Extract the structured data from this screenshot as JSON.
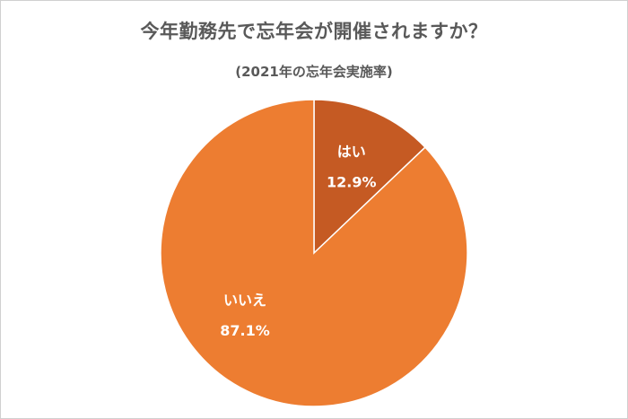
{
  "chart_data": {
    "type": "pie",
    "title": "今年勤務先で忘年会が開催されますか？",
    "subtitle": "(2021年の忘年会実施率)",
    "slices": [
      {
        "label": "はい",
        "value": 12.9,
        "value_label": "12.9%",
        "color": "#C55A23"
      },
      {
        "label": "いいえ",
        "value": 87.1,
        "value_label": "87.1%",
        "color": "#ED7D31"
      }
    ],
    "legend": "none"
  },
  "colors": {
    "slice_stroke": "#ffffff",
    "title": "#595959",
    "label_text": "#ffffff"
  }
}
